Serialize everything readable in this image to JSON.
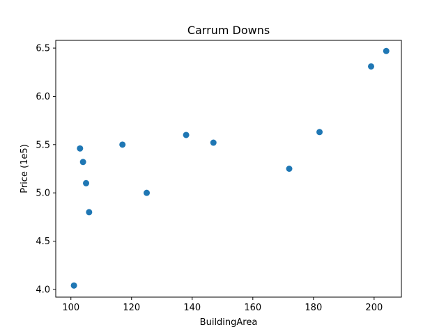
{
  "chart_data": {
    "type": "scatter",
    "title": "Carrum Downs",
    "xlabel": "BuildingArea",
    "ylabel": "Price (1e5)",
    "xlim": [
      95,
      209
    ],
    "ylim": [
      3.92,
      6.58
    ],
    "xticks": [
      100,
      120,
      140,
      160,
      180,
      200
    ],
    "yticks": [
      4.0,
      4.5,
      5.0,
      5.5,
      6.0,
      6.5
    ],
    "xtick_labels": [
      "100",
      "120",
      "140",
      "160",
      "180",
      "200"
    ],
    "ytick_labels": [
      "4.0",
      "4.5",
      "5.0",
      "5.5",
      "6.0",
      "6.5"
    ],
    "grid": false,
    "legend": "none",
    "marker_color": "#1f77b4",
    "points": [
      {
        "x": 101,
        "y": 4.04
      },
      {
        "x": 103,
        "y": 5.46
      },
      {
        "x": 104,
        "y": 5.32
      },
      {
        "x": 105,
        "y": 5.1
      },
      {
        "x": 106,
        "y": 4.8
      },
      {
        "x": 117,
        "y": 5.5
      },
      {
        "x": 125,
        "y": 5.0
      },
      {
        "x": 138,
        "y": 5.6
      },
      {
        "x": 147,
        "y": 5.52
      },
      {
        "x": 172,
        "y": 5.25
      },
      {
        "x": 182,
        "y": 5.63
      },
      {
        "x": 199,
        "y": 6.31
      },
      {
        "x": 204,
        "y": 6.47
      }
    ]
  }
}
